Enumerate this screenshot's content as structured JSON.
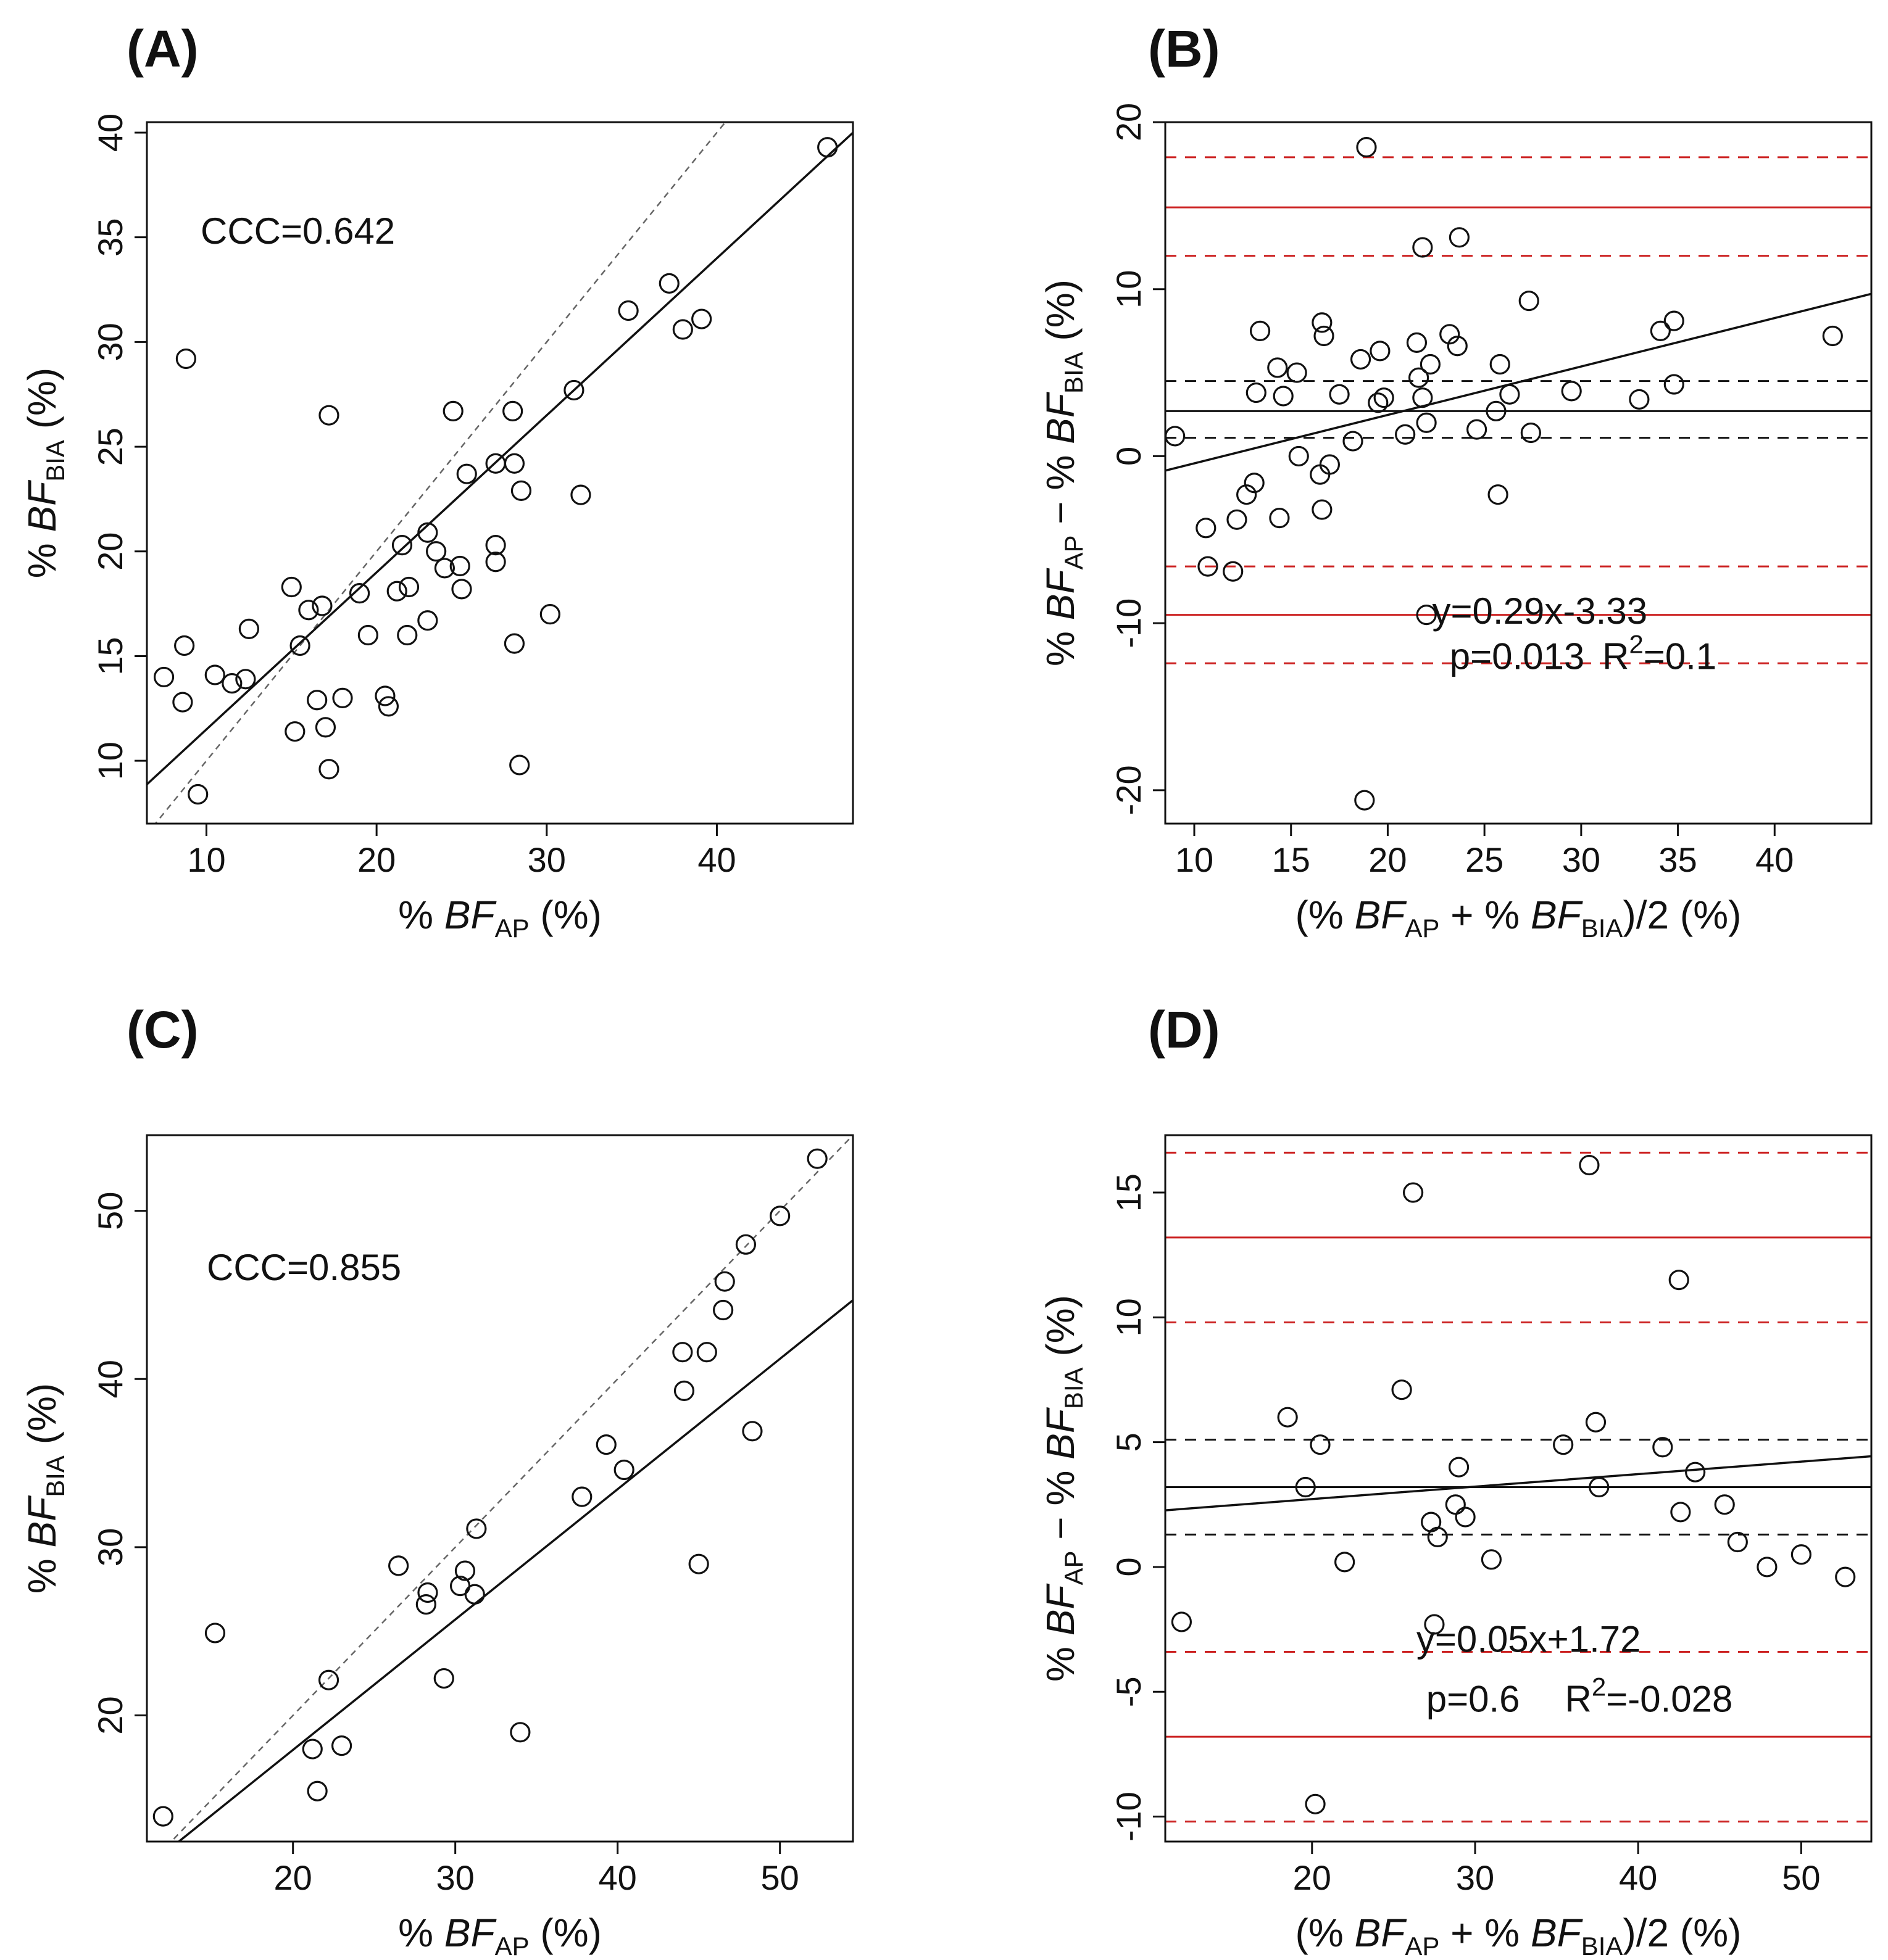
{
  "colors": {
    "ink": "#111111",
    "limits": "#cc2222",
    "identity": "#666666"
  },
  "chart_data": [
    {
      "panel_label": "(A)",
      "type": "scatter",
      "xlabel": {
        "prefix": "% ",
        "var": "BF",
        "sub": "AP",
        "unit": " (%)"
      },
      "ylabel": {
        "prefix": "% ",
        "var": "BF",
        "sub": "BIA",
        "unit": " (%)"
      },
      "xlim": [
        6.5,
        48
      ],
      "ylim": [
        7,
        40.5
      ],
      "xticks": [
        10,
        20,
        30,
        40
      ],
      "yticks": [
        10,
        15,
        20,
        25,
        30,
        35,
        40
      ],
      "annotation": "CCC=0.642",
      "identity_line": true,
      "fit_line": {
        "slope": 0.75,
        "intercept": 4.0
      },
      "points": [
        [
          7.5,
          14.0
        ],
        [
          8.6,
          12.8
        ],
        [
          8.7,
          15.5
        ],
        [
          8.8,
          29.2
        ],
        [
          9.5,
          8.4
        ],
        [
          10.5,
          14.1
        ],
        [
          11.5,
          13.7
        ],
        [
          12.3,
          13.9
        ],
        [
          12.5,
          16.3
        ],
        [
          15.0,
          18.3
        ],
        [
          15.2,
          11.4
        ],
        [
          15.5,
          15.5
        ],
        [
          16.0,
          17.2
        ],
        [
          16.5,
          12.9
        ],
        [
          16.8,
          17.4
        ],
        [
          17.0,
          11.6
        ],
        [
          17.2,
          9.6
        ],
        [
          17.2,
          26.5
        ],
        [
          18.0,
          13.0
        ],
        [
          19.0,
          18.0
        ],
        [
          19.5,
          16.0
        ],
        [
          20.5,
          13.1
        ],
        [
          20.7,
          12.6
        ],
        [
          21.2,
          18.1
        ],
        [
          21.5,
          20.3
        ],
        [
          21.8,
          16.0
        ],
        [
          21.9,
          18.3
        ],
        [
          23.0,
          20.9
        ],
        [
          23.0,
          16.7
        ],
        [
          23.5,
          20.0
        ],
        [
          24.0,
          19.2
        ],
        [
          24.5,
          26.7
        ],
        [
          24.9,
          19.3
        ],
        [
          25.0,
          18.2
        ],
        [
          25.3,
          23.7
        ],
        [
          27.0,
          20.3
        ],
        [
          27.0,
          19.5
        ],
        [
          27.0,
          24.2
        ],
        [
          28.0,
          26.7
        ],
        [
          28.1,
          24.2
        ],
        [
          28.1,
          15.6
        ],
        [
          28.4,
          9.8
        ],
        [
          28.5,
          22.9
        ],
        [
          30.2,
          17.0
        ],
        [
          31.6,
          27.7
        ],
        [
          32.0,
          22.7
        ],
        [
          34.8,
          31.5
        ],
        [
          37.2,
          32.8
        ],
        [
          38.0,
          30.6
        ],
        [
          39.1,
          31.1
        ],
        [
          46.5,
          39.3
        ]
      ]
    },
    {
      "panel_label": "(B)",
      "type": "scatter",
      "xlabel": {
        "prefix": "(% ",
        "var": "BF",
        "sub": "AP",
        "mid": " + % ",
        "var2": "BF",
        "sub2": "BIA",
        "unit": ")/2 (%)"
      },
      "ylabel": {
        "prefix": "% ",
        "var": "BF",
        "sub": "AP",
        "mid": " − % ",
        "var2": "BF",
        "sub2": "BIA",
        "unit": " (%)"
      },
      "xlim": [
        8.5,
        45
      ],
      "ylim": [
        -22,
        20
      ],
      "xticks": [
        10,
        15,
        20,
        25,
        30,
        35,
        40
      ],
      "yticks": [
        -20,
        -10,
        0,
        10,
        20
      ],
      "mean_line": 2.7,
      "mean_ci": [
        1.1,
        4.5
      ],
      "limits_of_agreement": [
        -9.5,
        14.9
      ],
      "limits_ci": [
        [
          -12.4,
          -6.6
        ],
        [
          12.0,
          17.9
        ]
      ],
      "fit_line": {
        "slope": 0.29,
        "intercept": -3.33
      },
      "annotation_eq": "y=0.29x-3.33",
      "annotation_p": "p=0.013",
      "annotation_r2": {
        "base": "R",
        "sup": "2",
        "value": "=0.1"
      },
      "points": [
        [
          9.0,
          1.2
        ],
        [
          10.6,
          -4.3
        ],
        [
          10.7,
          -6.6
        ],
        [
          12.0,
          -6.9
        ],
        [
          12.2,
          -3.8
        ],
        [
          12.7,
          -2.3
        ],
        [
          13.1,
          -1.6
        ],
        [
          13.2,
          3.8
        ],
        [
          13.4,
          7.5
        ],
        [
          14.3,
          5.3
        ],
        [
          14.4,
          -3.7
        ],
        [
          14.6,
          3.6
        ],
        [
          15.3,
          5.0
        ],
        [
          15.4,
          0.0
        ],
        [
          16.5,
          -1.1
        ],
        [
          16.6,
          -3.2
        ],
        [
          16.6,
          8.0
        ],
        [
          16.7,
          7.2
        ],
        [
          17.0,
          -0.5
        ],
        [
          17.5,
          3.7
        ],
        [
          18.2,
          0.9
        ],
        [
          18.6,
          5.8
        ],
        [
          18.8,
          -20.6
        ],
        [
          18.9,
          18.5
        ],
        [
          19.5,
          3.2
        ],
        [
          19.6,
          6.3
        ],
        [
          19.8,
          3.5
        ],
        [
          20.9,
          1.3
        ],
        [
          21.5,
          6.8
        ],
        [
          21.6,
          4.7
        ],
        [
          21.8,
          3.5
        ],
        [
          21.8,
          12.5
        ],
        [
          22.0,
          2.0
        ],
        [
          22.0,
          -9.5
        ],
        [
          22.2,
          5.5
        ],
        [
          23.2,
          7.3
        ],
        [
          23.6,
          6.6
        ],
        [
          23.7,
          13.1
        ],
        [
          24.6,
          1.6
        ],
        [
          25.6,
          2.7
        ],
        [
          25.7,
          -2.3
        ],
        [
          25.8,
          5.5
        ],
        [
          26.3,
          3.7
        ],
        [
          27.3,
          9.3
        ],
        [
          27.4,
          1.4
        ],
        [
          29.5,
          3.9
        ],
        [
          33.0,
          3.4
        ],
        [
          34.1,
          7.5
        ],
        [
          34.8,
          8.1
        ],
        [
          34.8,
          4.3
        ],
        [
          43.0,
          7.2
        ]
      ]
    },
    {
      "panel_label": "(C)",
      "type": "scatter",
      "xlabel": {
        "prefix": "% ",
        "var": "BF",
        "sub": "AP",
        "unit": " (%)"
      },
      "ylabel": {
        "prefix": "% ",
        "var": "BF",
        "sub": "BIA",
        "unit": " (%)"
      },
      "xlim": [
        11,
        54.5
      ],
      "ylim": [
        12.5,
        54.5
      ],
      "xticks": [
        20,
        30,
        40,
        50
      ],
      "yticks": [
        20,
        30,
        40,
        50
      ],
      "annotation": "CCC=0.855",
      "identity_line": true,
      "fit_line": {
        "slope": 0.775,
        "intercept": 2.45
      },
      "points": [
        [
          12.0,
          14.0
        ],
        [
          15.2,
          24.9
        ],
        [
          21.2,
          18.0
        ],
        [
          21.5,
          15.5
        ],
        [
          22.2,
          22.1
        ],
        [
          23.0,
          18.2
        ],
        [
          26.5,
          28.9
        ],
        [
          28.2,
          26.6
        ],
        [
          28.3,
          27.3
        ],
        [
          29.3,
          22.2
        ],
        [
          30.3,
          27.7
        ],
        [
          30.6,
          28.6
        ],
        [
          31.2,
          27.2
        ],
        [
          31.3,
          31.1
        ],
        [
          34.0,
          19.0
        ],
        [
          37.8,
          33.0
        ],
        [
          39.3,
          36.1
        ],
        [
          40.4,
          34.6
        ],
        [
          44.0,
          41.6
        ],
        [
          44.1,
          39.3
        ],
        [
          45.0,
          29.0
        ],
        [
          45.5,
          41.6
        ],
        [
          46.5,
          44.1
        ],
        [
          46.6,
          45.8
        ],
        [
          47.9,
          48.0
        ],
        [
          48.3,
          36.9
        ],
        [
          50.0,
          49.7
        ],
        [
          52.3,
          53.1
        ]
      ]
    },
    {
      "panel_label": "(D)",
      "type": "scatter",
      "xlabel": {
        "prefix": "(% ",
        "var": "BF",
        "sub": "AP",
        "mid": " + % ",
        "var2": "BF",
        "sub2": "BIA",
        "unit": ")/2 (%)"
      },
      "ylabel": {
        "prefix": "% ",
        "var": "BF",
        "sub": "AP",
        "mid": " − % ",
        "var2": "BF",
        "sub2": "BIA",
        "unit": " (%)"
      },
      "xlim": [
        11,
        54.3
      ],
      "ylim": [
        -11,
        17.3
      ],
      "xticks": [
        20,
        30,
        40,
        50
      ],
      "yticks": [
        -10,
        -5,
        0,
        5,
        10,
        15
      ],
      "mean_line": 3.2,
      "mean_ci": [
        1.3,
        5.1
      ],
      "limits_of_agreement": [
        -6.8,
        13.2
      ],
      "limits_ci": [
        [
          -10.2,
          -3.4
        ],
        [
          9.8,
          16.6
        ]
      ],
      "fit_line": {
        "slope": 0.05,
        "intercept": 1.72
      },
      "annotation_eq": "y=0.05x+1.72",
      "annotation_p": "p=0.6",
      "annotation_r2": {
        "base": "R",
        "sup": "2",
        "value": "=-0.028"
      },
      "points": [
        [
          12.0,
          -2.2
        ],
        [
          18.5,
          6.0
        ],
        [
          19.6,
          3.2
        ],
        [
          20.2,
          -9.5
        ],
        [
          20.5,
          4.9
        ],
        [
          22.0,
          0.2
        ],
        [
          25.5,
          7.1
        ],
        [
          26.2,
          15.0
        ],
        [
          27.3,
          1.8
        ],
        [
          27.5,
          -2.3
        ],
        [
          27.7,
          1.2
        ],
        [
          28.8,
          2.5
        ],
        [
          29.0,
          4.0
        ],
        [
          29.4,
          2.0
        ],
        [
          31.0,
          0.3
        ],
        [
          35.4,
          4.9
        ],
        [
          37.0,
          16.1
        ],
        [
          37.4,
          5.8
        ],
        [
          37.6,
          3.2
        ],
        [
          41.5,
          4.8
        ],
        [
          42.5,
          11.5
        ],
        [
          42.6,
          2.2
        ],
        [
          43.5,
          3.8
        ],
        [
          45.3,
          2.5
        ],
        [
          46.1,
          1.0
        ],
        [
          47.9,
          0.0
        ],
        [
          50.0,
          0.5
        ],
        [
          52.7,
          -0.4
        ]
      ]
    }
  ]
}
